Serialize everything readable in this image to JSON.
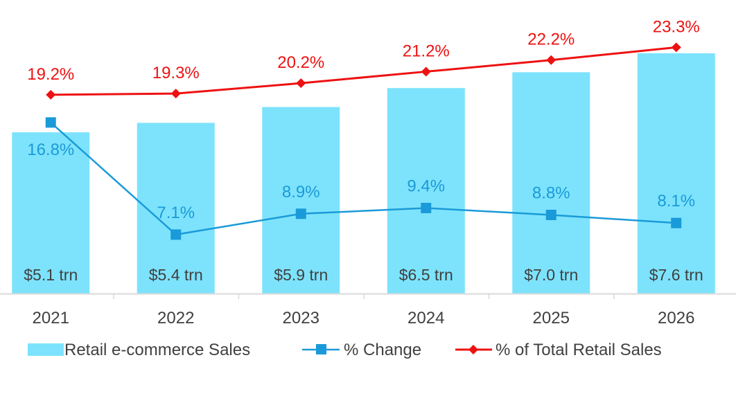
{
  "chart_data": {
    "type": "bar",
    "title": "",
    "xlabel": "",
    "ylabel": "",
    "categories": [
      "2021",
      "2022",
      "2023",
      "2024",
      "2025",
      "2026"
    ],
    "series": [
      {
        "name": "Retail e-commerce Sales",
        "kind": "bar",
        "axis": "primary",
        "unit": "trillion USD",
        "values": [
          5.1,
          5.4,
          5.9,
          6.5,
          7.0,
          7.6
        ],
        "labels": [
          "$5.1 trn",
          "$5.4 trn",
          "$5.9 trn",
          "$6.5 trn",
          "$7.0 trn",
          "$7.6 trn"
        ],
        "color": "#7de3fc"
      },
      {
        "name": "% Change",
        "kind": "line",
        "axis": "secondary",
        "marker": "square",
        "values": [
          16.8,
          7.1,
          8.9,
          9.4,
          8.8,
          8.1
        ],
        "labels": [
          "16.8%",
          "7.1%",
          "8.9%",
          "9.4%",
          "8.8%",
          "8.1%"
        ],
        "color": "#1a9ad8"
      },
      {
        "name": "% of Total Retail Sales",
        "kind": "line",
        "axis": "secondary",
        "marker": "diamond",
        "values": [
          19.2,
          19.3,
          20.2,
          21.2,
          22.2,
          23.3
        ],
        "labels": [
          "19.2%",
          "19.3%",
          "20.2%",
          "21.2%",
          "22.2%",
          "23.3%"
        ],
        "color": "#ee1111"
      }
    ],
    "primary_ylim": [
      0,
      8.3
    ],
    "secondary_ylim": [
      2,
      25
    ],
    "grid": false,
    "legend": "bottom"
  },
  "colors": {
    "axis": "#d9d9d9",
    "tick_text": "#404040",
    "bar_label": "#404040"
  }
}
